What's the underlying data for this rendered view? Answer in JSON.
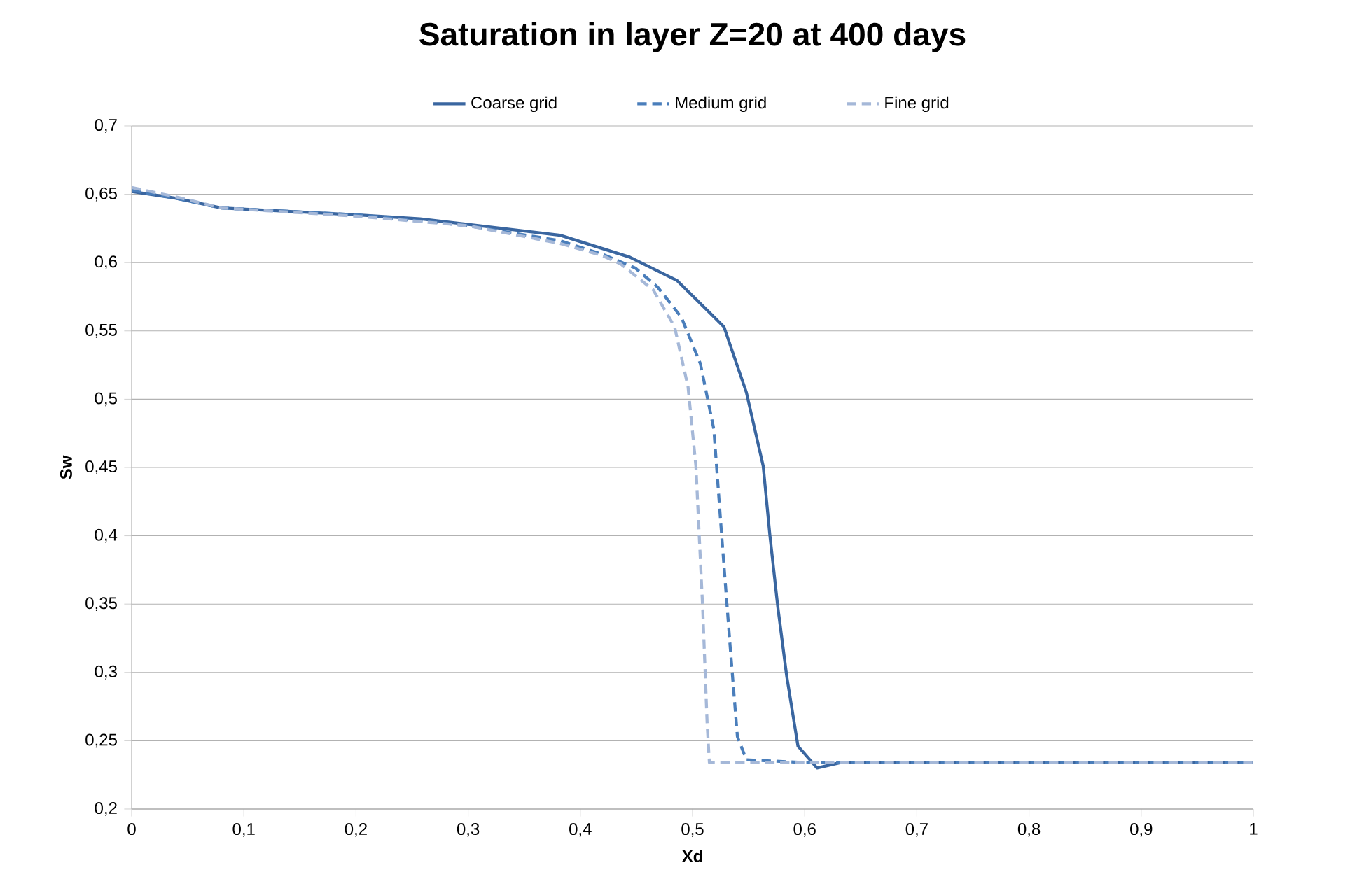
{
  "chart_data": {
    "type": "line",
    "title": "Saturation in layer Z=20 at 400 days",
    "xlabel": "Xd",
    "ylabel": "Sw",
    "xlim": [
      0,
      1
    ],
    "ylim": [
      0.2,
      0.7
    ],
    "xticks": [
      0,
      {
        "value": 0.1,
        "label": "0,1"
      },
      {
        "value": 0.2,
        "label": "0,2"
      },
      {
        "value": 0.3,
        "label": "0,3"
      },
      {
        "value": 0.4,
        "label": "0,4"
      },
      {
        "value": 0.5,
        "label": "0,5"
      },
      {
        "value": 0.6,
        "label": "0,6"
      },
      {
        "value": 0.7,
        "label": "0,7"
      },
      {
        "value": 0.8,
        "label": "0,8"
      },
      {
        "value": 0.9,
        "label": "0,9"
      },
      1
    ],
    "yticks": [
      {
        "value": 0.2,
        "label": "0,2"
      },
      {
        "value": 0.25,
        "label": "0,25"
      },
      {
        "value": 0.3,
        "label": "0,3"
      },
      {
        "value": 0.35,
        "label": "0,35"
      },
      {
        "value": 0.4,
        "label": "0,4"
      },
      {
        "value": 0.45,
        "label": "0,45"
      },
      {
        "value": 0.5,
        "label": "0,5"
      },
      {
        "value": 0.55,
        "label": "0,55"
      },
      {
        "value": 0.6,
        "label": "0,6"
      },
      {
        "value": 0.65,
        "label": "0,65"
      },
      {
        "value": 0.7,
        "label": "0,7"
      }
    ],
    "grid": "y",
    "legend": "top",
    "marker": "none",
    "series": [
      {
        "name": "Coarse grid",
        "color": "#3a66a0",
        "line_style": "solid",
        "x": [
          0,
          0.04,
          0.08,
          0.2,
          0.257,
          0.3,
          0.382,
          0.444,
          0.486,
          0.528,
          0.548,
          0.563,
          0.569,
          0.576,
          0.584,
          0.594,
          0.611,
          0.632,
          0.7,
          0.8,
          0.9,
          1
        ],
        "values": [
          0.652,
          0.647,
          0.64,
          0.635,
          0.632,
          0.628,
          0.62,
          0.604,
          0.587,
          0.553,
          0.505,
          0.451,
          0.4,
          0.348,
          0.297,
          0.246,
          0.23,
          0.234,
          0.234,
          0.234,
          0.234,
          0.234
        ]
      },
      {
        "name": "Medium grid",
        "color": "#4a7ebb",
        "line_style": "dashed",
        "x": [
          0,
          0.04,
          0.08,
          0.2,
          0.3,
          0.382,
          0.42,
          0.449,
          0.469,
          0.49,
          0.507,
          0.519,
          0.526,
          0.534,
          0.54,
          0.548,
          0.6,
          0.7,
          0.8,
          0.9,
          1
        ],
        "values": [
          0.653,
          0.647,
          0.64,
          0.635,
          0.627,
          0.616,
          0.606,
          0.596,
          0.582,
          0.56,
          0.526,
          0.478,
          0.4,
          0.314,
          0.253,
          0.236,
          0.234,
          0.234,
          0.234,
          0.234,
          0.234
        ]
      },
      {
        "name": "Fine grid",
        "color": "#a5b8d8",
        "line_style": "dashed",
        "x": [
          0,
          0.04,
          0.08,
          0.2,
          0.3,
          0.382,
          0.42,
          0.436,
          0.465,
          0.484,
          0.496,
          0.503,
          0.509,
          0.513,
          0.515,
          0.6,
          0.7,
          0.8,
          0.9,
          1
        ],
        "values": [
          0.655,
          0.648,
          0.64,
          0.634,
          0.627,
          0.614,
          0.605,
          0.599,
          0.58,
          0.553,
          0.509,
          0.451,
          0.348,
          0.263,
          0.234,
          0.234,
          0.234,
          0.234,
          0.234,
          0.234
        ]
      }
    ]
  }
}
